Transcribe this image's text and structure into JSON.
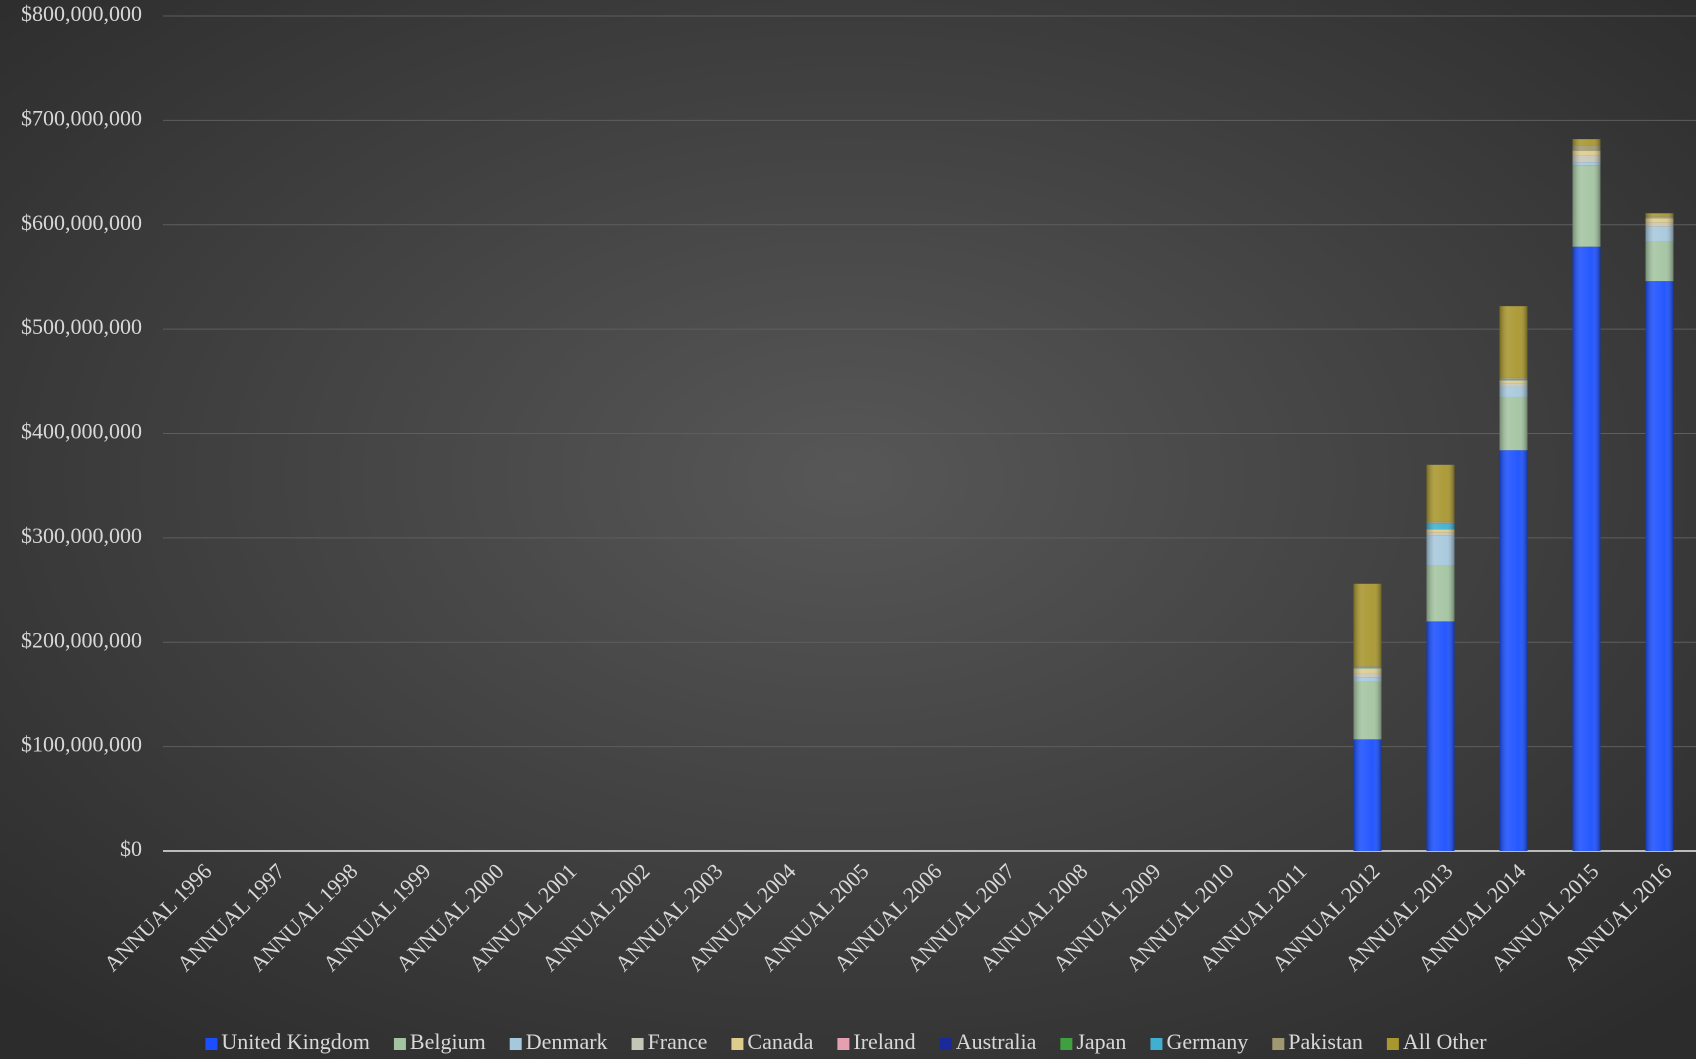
{
  "chart_data": {
    "type": "stacked-bar",
    "categories": [
      "ANNUAL 1996",
      "ANNUAL 1997",
      "ANNUAL 1998",
      "ANNUAL 1999",
      "ANNUAL 2000",
      "ANNUAL 2001",
      "ANNUAL 2002",
      "ANNUAL 2003",
      "ANNUAL 2004",
      "ANNUAL 2005",
      "ANNUAL 2006",
      "ANNUAL 2007",
      "ANNUAL 2008",
      "ANNUAL 2009",
      "ANNUAL 2010",
      "ANNUAL 2011",
      "ANNUAL 2012",
      "ANNUAL 2013",
      "ANNUAL 2014",
      "ANNUAL 2015",
      "ANNUAL 2016"
    ],
    "series": [
      {
        "name": "United Kingdom",
        "color": "#1a4fff",
        "values": [
          0,
          0,
          0,
          0,
          0,
          0,
          0,
          0,
          0,
          0,
          0,
          0,
          0,
          0,
          0,
          0,
          107000000,
          220000000,
          384000000,
          579000000,
          546000000
        ]
      },
      {
        "name": "Belgium",
        "color": "#a3c4a0",
        "values": [
          0,
          0,
          0,
          0,
          0,
          0,
          0,
          0,
          0,
          0,
          0,
          0,
          0,
          0,
          0,
          0,
          55000000,
          54000000,
          51000000,
          78000000,
          38000000
        ]
      },
      {
        "name": "Denmark",
        "color": "#a6c8dc",
        "values": [
          0,
          0,
          0,
          0,
          0,
          0,
          0,
          0,
          0,
          0,
          0,
          0,
          0,
          0,
          0,
          0,
          4000000,
          28000000,
          10000000,
          3000000,
          14000000
        ]
      },
      {
        "name": "France",
        "color": "#c6c6b8",
        "values": [
          0,
          0,
          0,
          0,
          0,
          0,
          0,
          0,
          0,
          0,
          0,
          0,
          0,
          0,
          0,
          0,
          4000000,
          3000000,
          3000000,
          6000000,
          4000000
        ]
      },
      {
        "name": "Canada",
        "color": "#ddcc8c",
        "values": [
          0,
          0,
          0,
          0,
          0,
          0,
          0,
          0,
          0,
          0,
          0,
          0,
          0,
          0,
          0,
          0,
          5000000,
          3000000,
          3000000,
          5000000,
          4000000
        ]
      },
      {
        "name": "Ireland",
        "color": "#e4a0b0",
        "values": [
          0,
          0,
          0,
          0,
          0,
          0,
          0,
          0,
          0,
          0,
          0,
          0,
          0,
          0,
          0,
          0,
          0,
          0,
          0,
          0,
          0
        ]
      },
      {
        "name": "Australia",
        "color": "#1a2a9a",
        "values": [
          0,
          0,
          0,
          0,
          0,
          0,
          0,
          0,
          0,
          0,
          0,
          0,
          0,
          0,
          0,
          0,
          0,
          0,
          0,
          0,
          0
        ]
      },
      {
        "name": "Japan",
        "color": "#40a040",
        "values": [
          0,
          0,
          0,
          0,
          0,
          0,
          0,
          0,
          0,
          0,
          0,
          0,
          0,
          0,
          0,
          0,
          0,
          0,
          0,
          0,
          0
        ]
      },
      {
        "name": "Germany",
        "color": "#40b0d0",
        "values": [
          0,
          0,
          0,
          0,
          0,
          0,
          0,
          0,
          0,
          0,
          0,
          0,
          0,
          0,
          0,
          0,
          1000000,
          6000000,
          1000000,
          0,
          0
        ]
      },
      {
        "name": "Pakistan",
        "color": "#a09870",
        "values": [
          0,
          0,
          0,
          0,
          0,
          0,
          0,
          0,
          0,
          0,
          0,
          0,
          0,
          0,
          0,
          0,
          1000000,
          2000000,
          2000000,
          5000000,
          2000000
        ]
      },
      {
        "name": "All Other",
        "color": "#a8962e",
        "values": [
          0,
          0,
          0,
          0,
          0,
          0,
          0,
          0,
          0,
          0,
          0,
          0,
          0,
          0,
          0,
          0,
          79000000,
          54000000,
          68000000,
          6000000,
          3000000
        ]
      }
    ],
    "ylim": [
      0,
      800000000
    ],
    "yticks": [
      {
        "value": 0,
        "label": "$0"
      },
      {
        "value": 100000000,
        "label": "$100,000,000"
      },
      {
        "value": 200000000,
        "label": "$200,000,000"
      },
      {
        "value": 300000000,
        "label": "$300,000,000"
      },
      {
        "value": 400000000,
        "label": "$400,000,000"
      },
      {
        "value": 500000000,
        "label": "$500,000,000"
      },
      {
        "value": 600000000,
        "label": "$600,000,000"
      },
      {
        "value": 700000000,
        "label": "$700,000,000"
      },
      {
        "value": 800000000,
        "label": "$800,000,000"
      }
    ],
    "grid": true,
    "legend": "bottom"
  }
}
